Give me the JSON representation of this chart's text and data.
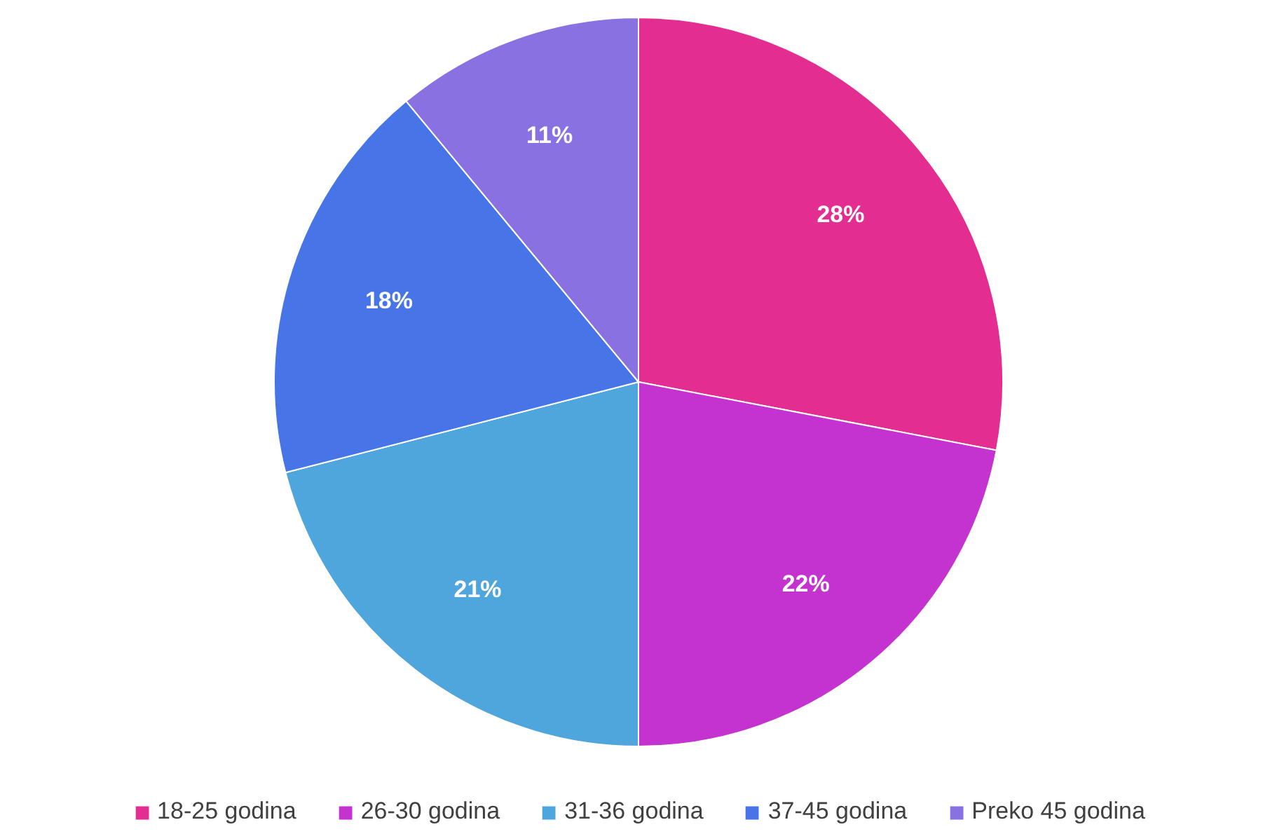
{
  "chart_data": {
    "type": "pie",
    "categories": [
      "18-25 godina",
      "26-30 godina",
      "31-36 godina",
      "37-45 godina",
      "Preko 45 godina"
    ],
    "values": [
      28,
      22,
      21,
      18,
      11
    ],
    "colors": [
      "#e32d91",
      "#c432cf",
      "#4ea6dc",
      "#4775e7",
      "#8971e1"
    ],
    "value_labels": [
      "28%",
      "22%",
      "21%",
      "18%",
      "11%"
    ],
    "legend": "bottom"
  }
}
